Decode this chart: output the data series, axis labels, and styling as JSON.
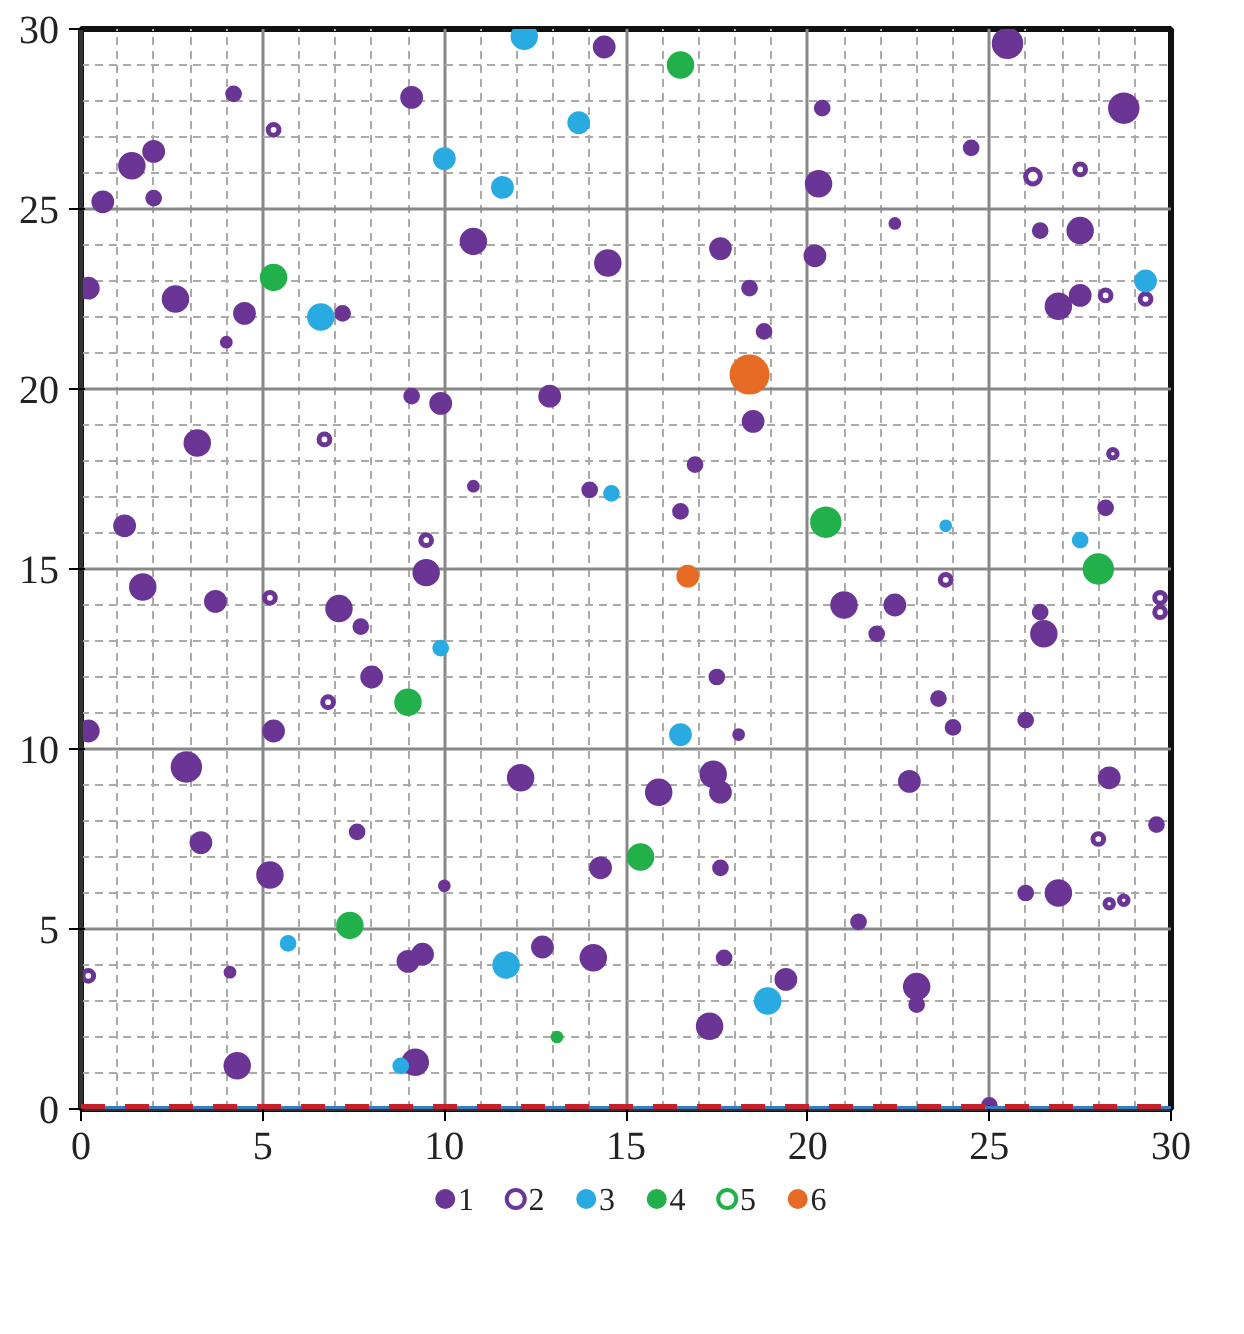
{
  "chart_data": {
    "type": "bubble",
    "xlim": [
      0,
      30
    ],
    "ylim": [
      0,
      30
    ],
    "xticks": [
      0,
      5,
      10,
      15,
      20,
      25,
      30
    ],
    "yticks": [
      0,
      5,
      10,
      15,
      20,
      25,
      30
    ],
    "grid": true,
    "legend": "bottom",
    "marker": "circle",
    "ref_lines": [
      {
        "axis": "y",
        "value": 0,
        "color": "#3a7bbf",
        "line_style": "solid"
      },
      {
        "axis": "y",
        "value": 0,
        "color": "#c8202a",
        "line_style": "dashed"
      }
    ],
    "series": [
      {
        "name": "1",
        "color": "#6a3595",
        "x": [
          25.5,
          9.1,
          4.2,
          14.4,
          28.7,
          20.4,
          1.4,
          2.0,
          0.6,
          2.0,
          20.3,
          24.5,
          22.4,
          26.4,
          27.5,
          10.8,
          14.5,
          17.6,
          20.2,
          0.2,
          2.6,
          4.5,
          7.2,
          18.4,
          18.8,
          4.0,
          26.9,
          27.5,
          9.1,
          9.9,
          12.9,
          3.2,
          18.5,
          16.9,
          28.2,
          10.8,
          14.0,
          16.5,
          1.2,
          1.7,
          3.7,
          7.1,
          7.7,
          9.5,
          21.0,
          22.4,
          21.9,
          26.4,
          26.5,
          8.0,
          17.5,
          23.6,
          24.0,
          26.0,
          18.1,
          0.2,
          5.3,
          2.9,
          12.1,
          17.4,
          17.6,
          15.9,
          22.8,
          28.3,
          3.3,
          7.6,
          10.0,
          14.3,
          17.6,
          29.6,
          5.2,
          26.0,
          26.9,
          21.4,
          4.1,
          9.0,
          9.4,
          12.7,
          14.1,
          17.7,
          19.4,
          23.0,
          23.0,
          17.3,
          4.3,
          9.2,
          25.0
        ],
        "values": [
          29.6,
          28.1,
          28.2,
          29.5,
          27.8,
          27.8,
          26.2,
          26.6,
          25.2,
          25.3,
          25.7,
          26.7,
          24.6,
          24.4,
          24.4,
          24.1,
          23.5,
          23.9,
          23.7,
          22.8,
          22.5,
          22.1,
          22.1,
          22.8,
          21.6,
          21.3,
          22.3,
          22.6,
          19.8,
          19.6,
          19.8,
          18.5,
          19.1,
          17.9,
          16.7,
          17.3,
          17.2,
          16.6,
          16.2,
          14.5,
          14.1,
          13.9,
          13.4,
          14.9,
          14.0,
          14.0,
          13.2,
          13.8,
          13.2,
          12.0,
          12.0,
          11.4,
          10.6,
          10.8,
          10.4,
          10.5,
          10.5,
          9.5,
          9.2,
          9.3,
          8.8,
          8.8,
          9.1,
          9.2,
          7.4,
          7.7,
          6.2,
          6.7,
          6.7,
          7.9,
          6.5,
          6.0,
          6.0,
          5.2,
          3.8,
          4.1,
          4.3,
          4.5,
          4.2,
          4.2,
          3.6,
          3.4,
          2.9,
          2.3,
          1.2,
          1.3,
          0.1
        ],
        "sizes": [
          0.6,
          0.3,
          0.15,
          0.3,
          0.6,
          0.15,
          0.45,
          0.3,
          0.3,
          0.15,
          0.45,
          0.15,
          0.08,
          0.15,
          0.45,
          0.45,
          0.45,
          0.3,
          0.3,
          0.3,
          0.45,
          0.3,
          0.15,
          0.15,
          0.15,
          0.08,
          0.45,
          0.3,
          0.15,
          0.3,
          0.3,
          0.45,
          0.3,
          0.15,
          0.15,
          0.08,
          0.15,
          0.15,
          0.3,
          0.45,
          0.3,
          0.45,
          0.15,
          0.45,
          0.45,
          0.3,
          0.15,
          0.15,
          0.45,
          0.3,
          0.15,
          0.15,
          0.15,
          0.15,
          0.08,
          0.3,
          0.3,
          0.6,
          0.45,
          0.45,
          0.3,
          0.45,
          0.3,
          0.3,
          0.3,
          0.15,
          0.08,
          0.3,
          0.15,
          0.15,
          0.45,
          0.15,
          0.45,
          0.15,
          0.08,
          0.3,
          0.3,
          0.3,
          0.45,
          0.15,
          0.3,
          0.45,
          0.15,
          0.45,
          0.45,
          0.45,
          0.15
        ]
      },
      {
        "name": "2",
        "color": "#6a3595",
        "marker": "circle_open",
        "x": [
          5.3,
          6.7,
          5.2,
          6.8,
          0.2,
          9.5,
          26.2,
          27.5,
          28.2,
          29.3,
          28.4,
          23.8,
          29.7,
          29.7,
          28.0,
          28.3,
          28.7
        ],
        "values": [
          27.2,
          18.6,
          14.2,
          11.3,
          3.7,
          15.8,
          25.9,
          26.1,
          22.6,
          22.5,
          18.2,
          14.7,
          14.2,
          13.8,
          7.5,
          5.7,
          5.8
        ],
        "sizes": [
          0.08,
          0.08,
          0.08,
          0.08,
          0.08,
          0.08,
          0.15,
          0.08,
          0.08,
          0.08,
          0.05,
          0.08,
          0.08,
          0.08,
          0.08,
          0.05,
          0.05
        ]
      },
      {
        "name": "3",
        "color": "#29abe2",
        "x": [
          12.2,
          10.0,
          13.7,
          11.6,
          6.6,
          29.3,
          14.6,
          23.8,
          27.5,
          9.9,
          16.5,
          5.7,
          11.7,
          18.9,
          8.8
        ],
        "values": [
          29.8,
          26.4,
          27.4,
          25.6,
          22.0,
          23.0,
          17.1,
          16.2,
          15.8,
          12.8,
          10.4,
          4.6,
          4.0,
          3.0,
          1.2
        ],
        "sizes": [
          0.45,
          0.3,
          0.3,
          0.3,
          0.45,
          0.3,
          0.15,
          0.08,
          0.15,
          0.15,
          0.3,
          0.15,
          0.45,
          0.45,
          0.15
        ]
      },
      {
        "name": "4",
        "color": "#22b04b",
        "x": [
          16.5,
          5.3,
          20.5,
          28.0,
          9.0,
          15.4,
          7.4,
          13.1
        ],
        "values": [
          29.0,
          23.1,
          16.3,
          15.0,
          11.3,
          7.0,
          5.1,
          2.0
        ],
        "sizes": [
          0.45,
          0.45,
          0.6,
          0.6,
          0.45,
          0.45,
          0.45,
          0.08
        ]
      },
      {
        "name": "5",
        "color": "#22b04b",
        "marker": "circle_open"
      },
      {
        "name": "6",
        "color": "#e66b25",
        "x": [
          18.4,
          16.7
        ],
        "values": [
          20.4,
          14.8
        ],
        "sizes": [
          1,
          0.3
        ]
      }
    ]
  }
}
